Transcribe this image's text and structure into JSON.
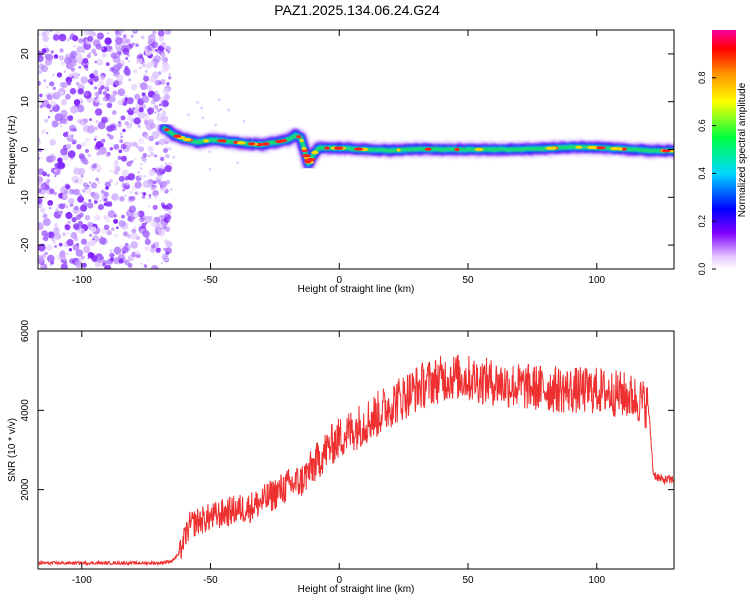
{
  "title": "PAZ1.2025.134.06.24.G24",
  "colors": {
    "snr_line": "#ee3030",
    "text": "#000000",
    "frame": "#000000"
  },
  "chart_data": [
    {
      "type": "heatmap",
      "xlabel": "Height of straight line (km)",
      "ylabel": "Frequency (Hz)",
      "xlim": [
        -117,
        130
      ],
      "ylim": [
        -25,
        25
      ],
      "xticks": [
        -100,
        -50,
        0,
        50,
        100
      ],
      "yticks": [
        -20,
        -10,
        0,
        10,
        20
      ],
      "colorbar": {
        "label": "Normalized spectral amplitude",
        "range": [
          0,
          1
        ],
        "ticks": [
          "0.0",
          "0.2",
          "0.4",
          "0.6",
          "0.8"
        ],
        "colormap": "rainbow"
      },
      "noise_region_x": [
        -117,
        -68
      ],
      "ridge": [
        {
          "x": -68,
          "y": 4.5
        },
        {
          "x": -64,
          "y": 3.0
        },
        {
          "x": -60,
          "y": 2.2
        },
        {
          "x": -55,
          "y": 1.5
        },
        {
          "x": -50,
          "y": 2.0
        },
        {
          "x": -45,
          "y": 1.8
        },
        {
          "x": -40,
          "y": 1.5
        },
        {
          "x": -35,
          "y": 1.2
        },
        {
          "x": -30,
          "y": 1.0
        },
        {
          "x": -25,
          "y": 1.5
        },
        {
          "x": -20,
          "y": 2.0
        },
        {
          "x": -17,
          "y": 3.0
        },
        {
          "x": -15,
          "y": 2.5
        },
        {
          "x": -13,
          "y": -1.0
        },
        {
          "x": -12,
          "y": -3.0
        },
        {
          "x": -10,
          "y": -1.0
        },
        {
          "x": -8,
          "y": 0.3
        },
        {
          "x": 0,
          "y": 0.3
        },
        {
          "x": 10,
          "y": 0.0
        },
        {
          "x": 20,
          "y": -0.2
        },
        {
          "x": 30,
          "y": 0.1
        },
        {
          "x": 40,
          "y": 0.0
        },
        {
          "x": 50,
          "y": 0.0
        },
        {
          "x": 60,
          "y": 0.0
        },
        {
          "x": 70,
          "y": 0.0
        },
        {
          "x": 80,
          "y": 0.2
        },
        {
          "x": 90,
          "y": 0.5
        },
        {
          "x": 100,
          "y": 0.4
        },
        {
          "x": 110,
          "y": 0.1
        },
        {
          "x": 120,
          "y": -0.2
        },
        {
          "x": 130,
          "y": -0.3
        }
      ]
    },
    {
      "type": "line",
      "xlabel": "Height of straight line (km)",
      "ylabel": "SNR (10 * v/v)",
      "xlim": [
        -117,
        130
      ],
      "ylim": [
        0,
        6000
      ],
      "xticks": [
        -100,
        -50,
        0,
        50,
        100
      ],
      "yticks": [
        2000,
        4000,
        6000
      ],
      "series": [
        {
          "color": "#ee3030",
          "points": [
            {
              "x": -117,
              "y": 150
            },
            {
              "x": -100,
              "y": 150
            },
            {
              "x": -80,
              "y": 150
            },
            {
              "x": -70,
              "y": 150
            },
            {
              "x": -65,
              "y": 200
            },
            {
              "x": -62,
              "y": 400
            },
            {
              "x": -60,
              "y": 800
            },
            {
              "x": -58,
              "y": 1100
            },
            {
              "x": -55,
              "y": 1200
            },
            {
              "x": -50,
              "y": 1300
            },
            {
              "x": -45,
              "y": 1400
            },
            {
              "x": -40,
              "y": 1500
            },
            {
              "x": -35,
              "y": 1550
            },
            {
              "x": -30,
              "y": 1700
            },
            {
              "x": -25,
              "y": 1900
            },
            {
              "x": -20,
              "y": 2100
            },
            {
              "x": -15,
              "y": 2200
            },
            {
              "x": -10,
              "y": 2600
            },
            {
              "x": -5,
              "y": 3000
            },
            {
              "x": 0,
              "y": 3300
            },
            {
              "x": 5,
              "y": 3500
            },
            {
              "x": 10,
              "y": 3700
            },
            {
              "x": 15,
              "y": 3900
            },
            {
              "x": 20,
              "y": 4150
            },
            {
              "x": 25,
              "y": 4350
            },
            {
              "x": 30,
              "y": 4550
            },
            {
              "x": 35,
              "y": 4700
            },
            {
              "x": 40,
              "y": 4800
            },
            {
              "x": 45,
              "y": 4850
            },
            {
              "x": 50,
              "y": 4800
            },
            {
              "x": 60,
              "y": 4700
            },
            {
              "x": 70,
              "y": 4600
            },
            {
              "x": 80,
              "y": 4550
            },
            {
              "x": 90,
              "y": 4500
            },
            {
              "x": 100,
              "y": 4500
            },
            {
              "x": 110,
              "y": 4400
            },
            {
              "x": 115,
              "y": 4300
            },
            {
              "x": 118,
              "y": 4200
            },
            {
              "x": 120,
              "y": 4100
            },
            {
              "x": 121,
              "y": 3300
            },
            {
              "x": 122,
              "y": 2400
            },
            {
              "x": 125,
              "y": 2250
            },
            {
              "x": 130,
              "y": 2250
            }
          ]
        }
      ]
    }
  ]
}
